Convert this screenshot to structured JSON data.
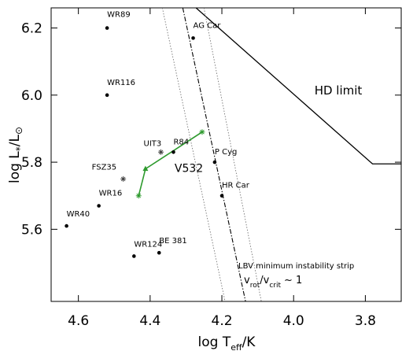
{
  "chart_data": {
    "type": "scatter",
    "xlabel_parts": [
      "log T",
      "eff",
      "/K"
    ],
    "ylabel_parts": [
      "log L",
      "*",
      "/L",
      "⊙"
    ],
    "xlim": [
      4.676,
      3.7
    ],
    "ylim": [
      5.385,
      6.26
    ],
    "xticks": [
      4.6,
      4.4,
      4.2,
      {
        "value": 4,
        "label": "4.0"
      },
      3.8
    ],
    "yticks": [
      {
        "value": 6.2,
        "label": "6.2"
      },
      {
        "value": 6,
        "label": "6.0"
      },
      5.8,
      5.6
    ],
    "points": [
      {
        "label": "WR89",
        "x": 4.52,
        "y": 6.2,
        "marker": "dot"
      },
      {
        "label": "WR116",
        "x": 4.52,
        "y": 6.0,
        "marker": "dot"
      },
      {
        "label": "AG Car",
        "x": 4.28,
        "y": 6.17,
        "marker": "dot"
      },
      {
        "label": "UIT3",
        "x": 4.37,
        "y": 5.83,
        "marker": "star"
      },
      {
        "label": "R84",
        "x": 4.335,
        "y": 5.83,
        "marker": "dot"
      },
      {
        "label": "P Cyg",
        "x": 4.22,
        "y": 5.8,
        "marker": "dot"
      },
      {
        "label": "HR Car",
        "x": 4.2,
        "y": 5.7,
        "marker": "dot"
      },
      {
        "label": "FSZ35",
        "x": 4.475,
        "y": 5.75,
        "marker": "star"
      },
      {
        "label": "WR16",
        "x": 4.543,
        "y": 5.67,
        "marker": "dot"
      },
      {
        "label": "WR40",
        "x": 4.633,
        "y": 5.61,
        "marker": "dot"
      },
      {
        "label": "WR124",
        "x": 4.445,
        "y": 5.52,
        "marker": "dot"
      },
      {
        "label": "BE 381",
        "x": 4.375,
        "y": 5.53,
        "marker": "dot"
      }
    ],
    "series": [
      {
        "name": "V532",
        "color": "#2e9a2e",
        "x": [
          4.432,
          4.413,
          4.255
        ],
        "y": [
          5.7,
          5.78,
          5.89
        ],
        "markers": [
          "star",
          "triangle",
          "star"
        ]
      }
    ],
    "hd_limit": {
      "label": "HD limit",
      "x": [
        4.272,
        3.78,
        3.7
      ],
      "y": [
        6.26,
        5.795,
        5.795
      ]
    },
    "strip": {
      "label": "LBV minimum instability strip",
      "condition_parts": [
        "v",
        "rot",
        "/v",
        "crit",
        "~ 1"
      ],
      "lines": [
        {
          "style": "dotted",
          "x": [
            4.366,
            4.191
          ],
          "y": [
            6.26,
            5.385
          ]
        },
        {
          "style": "dashdot",
          "x": [
            4.309,
            4.134
          ],
          "y": [
            6.26,
            5.385
          ]
        },
        {
          "style": "dotted",
          "x": [
            4.25,
            4.09
          ],
          "y": [
            6.26,
            5.385
          ]
        }
      ]
    }
  }
}
